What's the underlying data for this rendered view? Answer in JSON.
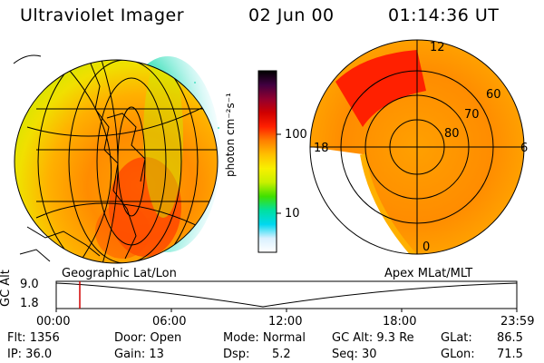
{
  "header": {
    "instrument": "Ultraviolet Imager",
    "date": "02 Jun 00",
    "time": "01:14:36 UT"
  },
  "colorbar": {
    "unit_label": "photon cm⁻²s⁻¹",
    "ticks": [
      "100",
      "10"
    ],
    "scale": "log",
    "colors": [
      "#ffffff",
      "#d9f0ff",
      "#00d8f0",
      "#00e0a0",
      "#40e000",
      "#c8f000",
      "#f8f000",
      "#ffc000",
      "#ff8000",
      "#ff2000",
      "#d00000",
      "#900030",
      "#400040",
      "#000000"
    ]
  },
  "left_panel": {
    "caption": "Geographic Lat/Lon"
  },
  "right_panel": {
    "caption": "Apex MLat/MLT",
    "lat_labels": [
      "60",
      "70",
      "80"
    ],
    "mlt_labels": [
      "12",
      "18",
      "6",
      "0"
    ]
  },
  "alt_plot": {
    "ylabel": "GC Alt",
    "yticks": [
      "9.0",
      "1.8"
    ],
    "xticks": [
      "00:00",
      "06:00",
      "12:00",
      "18:00",
      "23:59"
    ],
    "marker_color": "#d00000"
  },
  "info": {
    "flt": "Flt: 1356",
    "ip": "IP: 36.0",
    "door": "Door: Open",
    "gain": "Gain: 13",
    "mode": "Mode: Normal",
    "dsp_label": "Dsp:",
    "dsp_value": "5.2",
    "gcalt": "GC Alt: 9.3 Re",
    "seq": "Seq: 30",
    "glat_label": "GLat:",
    "glat_value": "86.5",
    "glon_label": "GLon:",
    "glon_value": "71.5"
  }
}
